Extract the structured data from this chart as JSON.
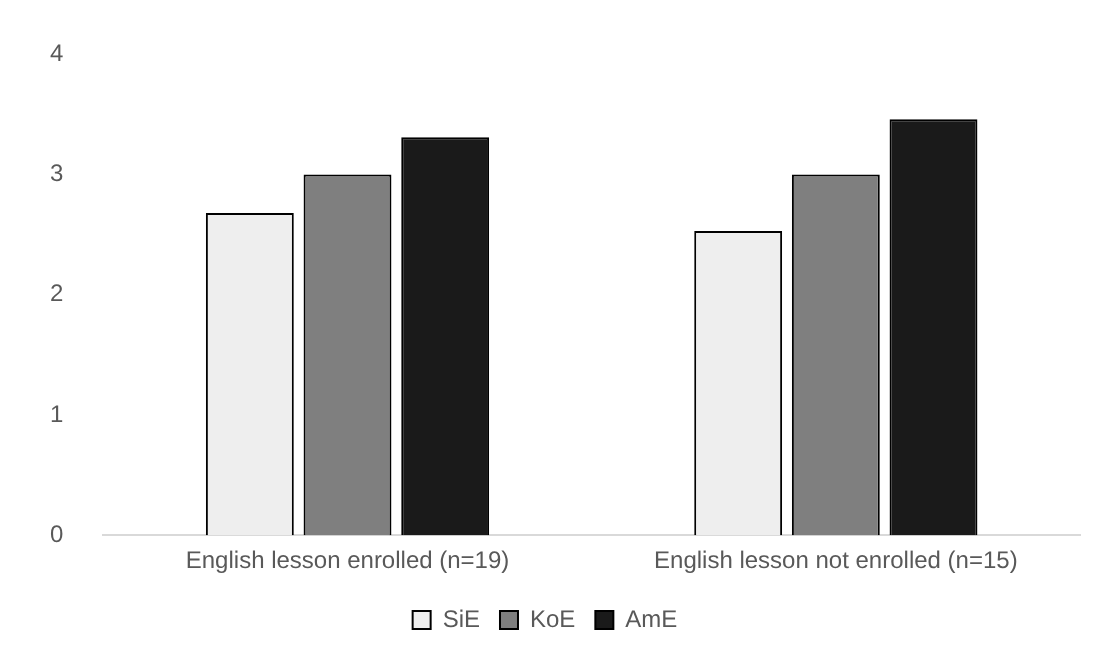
{
  "chart_data": {
    "type": "bar",
    "categories": [
      "English lesson enrolled (n=19)",
      "English lesson not enrolled (n=15)"
    ],
    "series": [
      {
        "name": "SiE",
        "color": "#eeeeee",
        "values": [
          2.68,
          2.53
        ]
      },
      {
        "name": "KoE",
        "color": "#7f7f7f",
        "values": [
          3.0,
          3.0
        ]
      },
      {
        "name": "AmE",
        "color": "#1a1a1a",
        "values": [
          3.31,
          3.46
        ]
      }
    ],
    "ylim": [
      0,
      4
    ],
    "yticks": [
      0,
      1,
      2,
      3,
      4
    ],
    "grid": false,
    "legend": "bottom"
  }
}
